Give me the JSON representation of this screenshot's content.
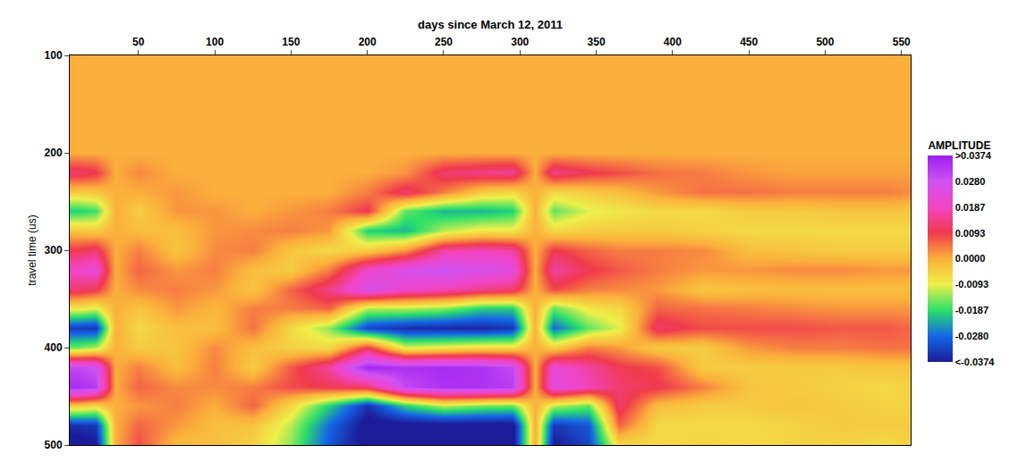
{
  "chart_data": {
    "type": "heatmap",
    "x_label": "days since March 12, 2011",
    "y_label": "travel time (us)",
    "x": [
      10,
      22,
      35,
      50,
      75,
      100,
      125,
      150,
      175,
      200,
      225,
      250,
      275,
      295,
      310,
      322,
      345,
      365,
      390,
      420,
      450,
      480,
      510,
      540,
      555
    ],
    "y": [
      100,
      120,
      140,
      160,
      180,
      200,
      220,
      240,
      260,
      280,
      300,
      320,
      340,
      360,
      380,
      400,
      420,
      440,
      460,
      480,
      500
    ],
    "cells": [
      [
        0,
        0,
        0,
        0,
        0,
        0,
        0.012,
        -0.004,
        -0.02,
        -0.003,
        0.01,
        0.02,
        0.012,
        -0.008,
        -0.033,
        -0.015,
        0.03,
        0.035,
        -0.004,
        -0.035,
        -0.04
      ],
      [
        0,
        0,
        0,
        0,
        0,
        0,
        0.01,
        -0.003,
        -0.018,
        -0.004,
        0.012,
        0.022,
        0.01,
        -0.01,
        -0.034,
        -0.012,
        0.028,
        0.032,
        -0.006,
        -0.034,
        -0.038
      ],
      [
        0,
        0,
        0,
        0,
        0,
        0,
        0,
        0,
        0,
        0,
        0,
        0,
        0,
        0,
        0,
        0,
        0,
        0,
        0,
        0,
        0
      ],
      [
        0,
        0,
        0,
        0,
        0,
        0,
        0.003,
        0,
        -0.004,
        -0.002,
        0.004,
        0.006,
        0.003,
        -0.003,
        -0.006,
        -0.004,
        0.004,
        0.006,
        0.002,
        0.006,
        0.008
      ],
      [
        0,
        0,
        0,
        0,
        0,
        0,
        0,
        0.002,
        0.002,
        -0.002,
        -0.003,
        0.002,
        0.004,
        0.002,
        -0.002,
        -0.003,
        -0.002,
        0.003,
        0.004,
        0.002,
        -0.002
      ],
      [
        0,
        0,
        0,
        0,
        0,
        0,
        0,
        0,
        0.002,
        0.002,
        0.003,
        0.004,
        0.002,
        -0.001,
        -0.002,
        0.003,
        0.004,
        0.003,
        0,
        -0.002,
        -0.002
      ],
      [
        0,
        0,
        0,
        0,
        0,
        0,
        0,
        0,
        0,
        0.003,
        0.004,
        -0.002,
        -0.003,
        0.004,
        0.005,
        -0.002,
        -0.004,
        0.004,
        0.006,
        -0.003,
        -0.005
      ],
      [
        0,
        0,
        0,
        0,
        0,
        0,
        0,
        0,
        0.002,
        0.004,
        -0.003,
        -0.004,
        0.006,
        0.004,
        -0.006,
        -0.005,
        0.007,
        0.008,
        -0.006,
        -0.012,
        -0.014
      ],
      [
        0,
        0,
        0,
        0,
        0,
        0,
        0,
        0,
        0.004,
        0.002,
        -0.006,
        0.004,
        0.014,
        0.006,
        -0.014,
        -0.006,
        0.016,
        0.01,
        -0.02,
        -0.028,
        -0.03
      ],
      [
        0,
        0,
        0,
        0,
        0,
        0,
        0,
        0.004,
        0.01,
        -0.02,
        -0.004,
        0.02,
        0.026,
        -0.012,
        -0.032,
        0.01,
        0.036,
        0.012,
        -0.035,
        -0.04,
        -0.04
      ],
      [
        0,
        0,
        0,
        0,
        0,
        0,
        0.002,
        0.012,
        -0.016,
        -0.022,
        0.002,
        0.026,
        0.02,
        -0.012,
        -0.035,
        -0.01,
        0.034,
        0.03,
        -0.02,
        -0.04,
        -0.04
      ],
      [
        0,
        0,
        0,
        0,
        0,
        0,
        0.012,
        0.004,
        -0.022,
        -0.012,
        0.016,
        0.028,
        0.018,
        -0.014,
        -0.036,
        -0.008,
        0.035,
        0.034,
        -0.012,
        -0.04,
        -0.04
      ],
      [
        0,
        0,
        0,
        0,
        0,
        0,
        0.014,
        -0.004,
        -0.022,
        -0.008,
        0.018,
        0.026,
        0.014,
        -0.02,
        -0.036,
        -0.006,
        0.034,
        0.034,
        -0.015,
        -0.04,
        -0.04
      ],
      [
        0,
        0,
        0,
        0,
        0,
        0,
        0.015,
        -0.006,
        -0.02,
        -0.008,
        0.016,
        0.024,
        0.012,
        -0.02,
        -0.034,
        -0.006,
        0.03,
        0.032,
        -0.016,
        -0.04,
        -0.04
      ],
      [
        0,
        0,
        0,
        0,
        0,
        0,
        0,
        0,
        0,
        0,
        0,
        0,
        0,
        0,
        0,
        0,
        0,
        0,
        0,
        0,
        0
      ],
      [
        0,
        0,
        0,
        0,
        0,
        0,
        0.014,
        -0.006,
        -0.016,
        -0.006,
        0.01,
        0.016,
        0.008,
        -0.016,
        -0.028,
        -0.004,
        0.022,
        0.024,
        -0.012,
        -0.034,
        -0.038
      ],
      [
        0,
        0,
        0,
        0,
        0,
        0,
        0.01,
        -0.004,
        -0.01,
        -0.004,
        0.006,
        0.01,
        0.004,
        -0.008,
        -0.016,
        0.004,
        0.016,
        0.018,
        -0.016,
        -0.03,
        -0.032
      ],
      [
        0,
        0,
        0,
        0,
        0,
        0,
        0.008,
        -0.002,
        -0.008,
        -0.004,
        0.004,
        0.007,
        0.003,
        -0.006,
        -0.01,
        0.002,
        0.01,
        0.012,
        0.012,
        0.006,
        -0.006
      ],
      [
        0,
        0,
        0,
        0,
        0,
        0,
        0.005,
        0.002,
        -0.006,
        -0.004,
        0.004,
        0.004,
        0.002,
        0.006,
        0.012,
        -0.004,
        0.008,
        0.01,
        -0.002,
        -0.006,
        -0.006
      ],
      [
        0,
        0,
        0,
        0,
        0,
        0,
        0.004,
        0.005,
        -0.006,
        -0.005,
        0.003,
        0.002,
        -0.003,
        0.005,
        0.008,
        -0.004,
        -0.004,
        0.004,
        -0.004,
        -0.006,
        -0.005
      ],
      [
        0,
        0,
        0,
        0,
        0,
        0,
        0.002,
        0.005,
        -0.004,
        -0.006,
        -0.002,
        0.002,
        -0.002,
        0.004,
        0.008,
        0.002,
        -0.004,
        -0.003,
        -0.004,
        -0.006,
        -0.006
      ],
      [
        0,
        0,
        0,
        0,
        0,
        0,
        0.001,
        0.004,
        -0.004,
        -0.006,
        -0.003,
        0.003,
        -0.002,
        0.003,
        0.008,
        0.004,
        -0.004,
        -0.004,
        -0.003,
        -0.005,
        -0.005
      ],
      [
        0,
        0,
        0,
        0,
        0,
        0,
        0.001,
        0.004,
        -0.003,
        -0.006,
        -0.004,
        0.003,
        -0.002,
        0.002,
        0.007,
        0.004,
        -0.004,
        -0.005,
        -0.004,
        -0.004,
        -0.005
      ],
      [
        0,
        0,
        0,
        0,
        0,
        0,
        0.001,
        0.004,
        -0.003,
        -0.006,
        -0.004,
        0.002,
        -0.002,
        0.002,
        0.007,
        0.005,
        -0.003,
        -0.006,
        -0.005,
        -0.004,
        -0.006
      ],
      [
        0,
        0,
        0,
        0,
        0,
        0,
        0.001,
        0.003,
        -0.003,
        -0.006,
        -0.004,
        0.002,
        -0.002,
        0.002,
        0.006,
        0.005,
        -0.003,
        -0.005,
        -0.005,
        -0.004,
        -0.005
      ]
    ],
    "xlim": [
      5,
      556
    ],
    "xticks": [
      50,
      100,
      150,
      200,
      250,
      300,
      350,
      400,
      450,
      500,
      550
    ],
    "ylim": [
      500,
      100
    ],
    "yticks": [
      100,
      200,
      300,
      400,
      500
    ],
    "colorbar": {
      "title": "AMPLITUDE",
      "range": [
        -0.0374,
        0.0374
      ],
      "ticks": [
        {
          "value": -0.0374,
          "label": "<-0.0374"
        },
        {
          "value": -0.028,
          "label": "-0.0280"
        },
        -0.0187,
        -0.0093,
        {
          "value": 0,
          "label": "0.0000"
        },
        0.0093,
        0.0187,
        {
          "value": 0.028,
          "label": "0.0280"
        },
        {
          "value": 0.0374,
          "label": ">0.0374"
        }
      ]
    }
  }
}
